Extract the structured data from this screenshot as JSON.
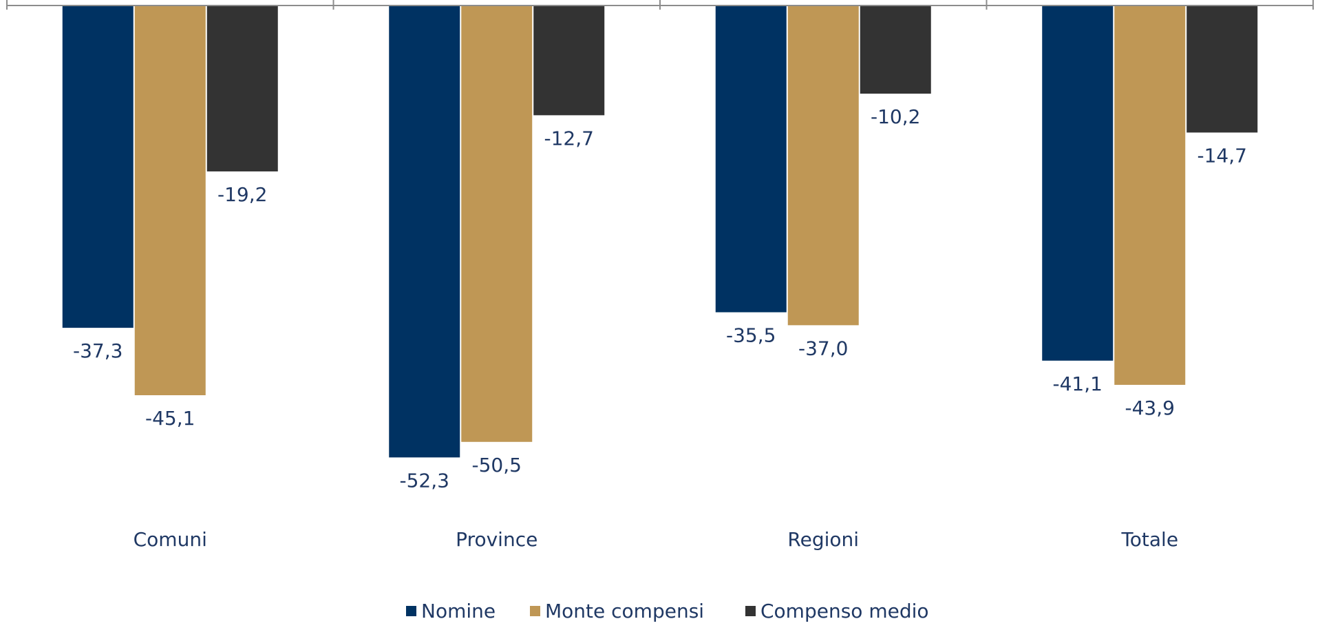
{
  "chart_data": {
    "type": "bar",
    "categories": [
      "Comuni",
      "Province",
      "Regioni",
      "Totale"
    ],
    "series": [
      {
        "name": "Nomine",
        "values": [
          -37.3,
          -52.3,
          -35.5,
          -41.1
        ],
        "labels": [
          "-37,3",
          "-52,3",
          "-35,5",
          "-41,1"
        ],
        "color": "#003262"
      },
      {
        "name": "Monte compensi",
        "values": [
          -45.1,
          -50.5,
          -37.0,
          -43.9
        ],
        "labels": [
          "-45,1",
          "-50,5",
          "-37,0",
          "-43,9"
        ],
        "color": "#bf9755"
      },
      {
        "name": "Compenso medio",
        "values": [
          -19.2,
          -12.7,
          -10.2,
          -14.7
        ],
        "labels": [
          "-19,2",
          "-12,7",
          "-10,2",
          "-14,7"
        ],
        "color": "#333333"
      }
    ],
    "ylim": [
      -60,
      0
    ],
    "grid": false,
    "legend": "bottom",
    "text_color": "#1f3864",
    "axis_color": "#8c8c8c"
  }
}
